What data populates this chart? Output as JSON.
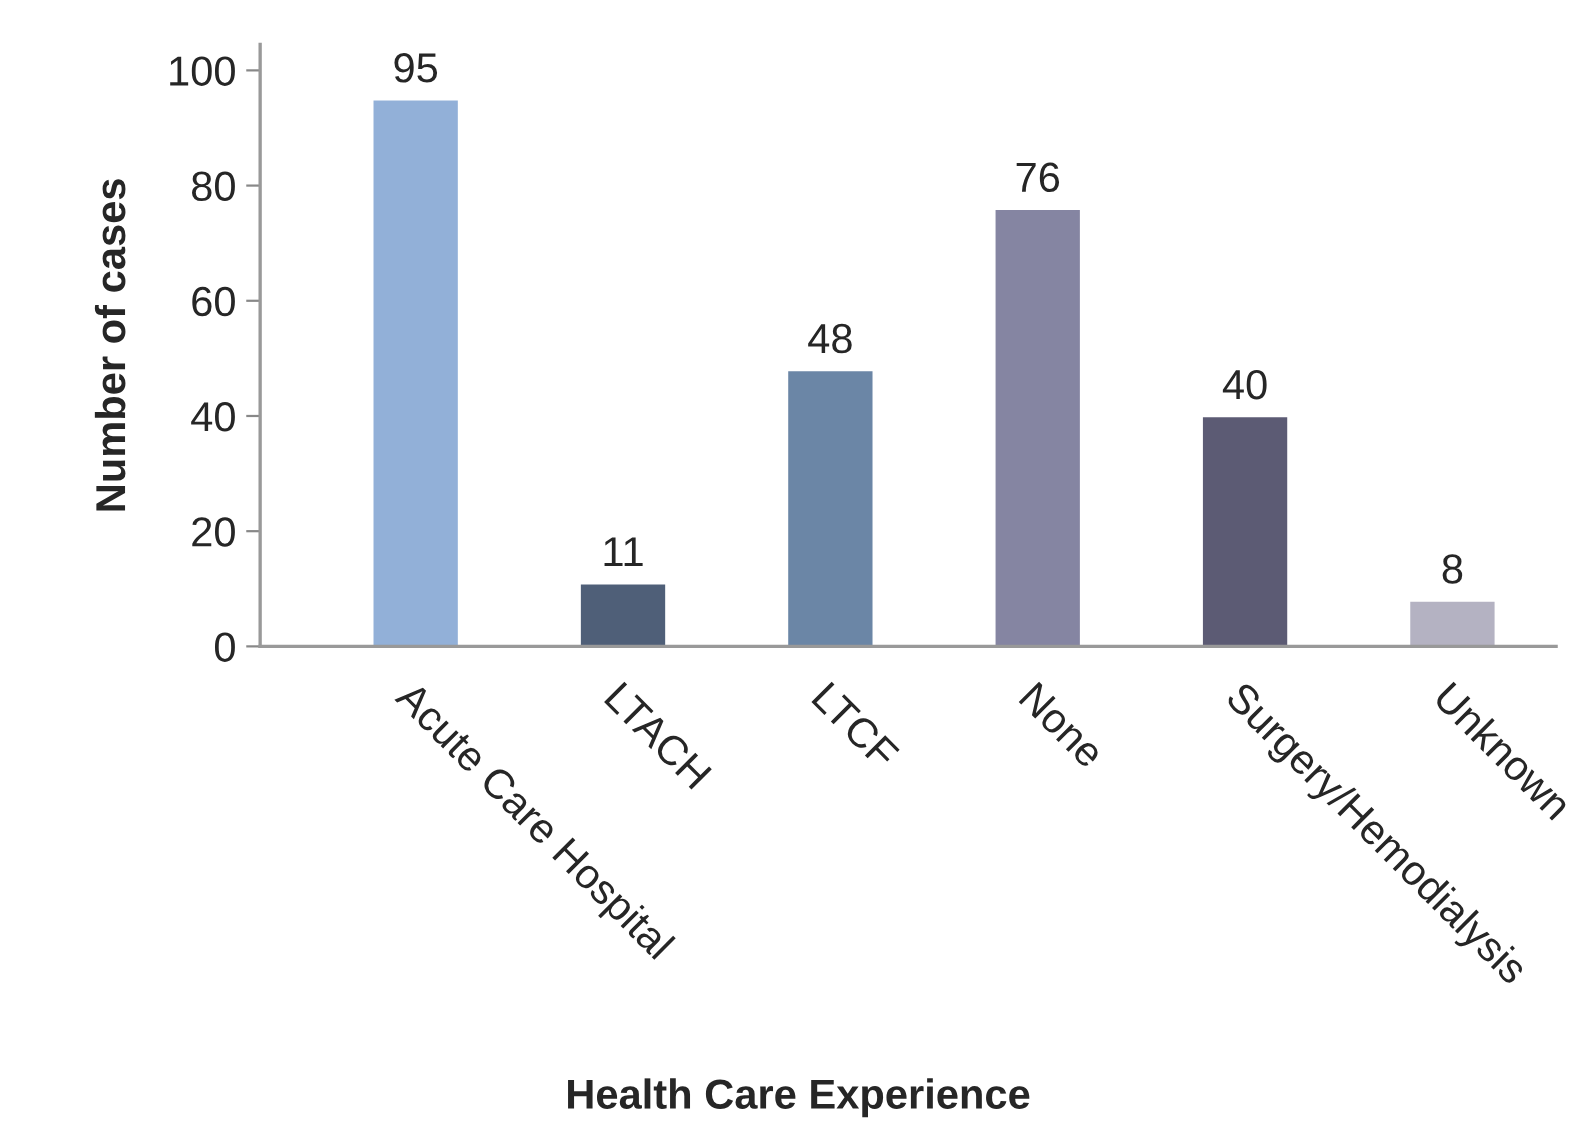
{
  "chart_data": {
    "type": "bar",
    "xlabel": "Health Care Experience",
    "ylabel": "Number of cases",
    "categories": [
      "Acute Care Hospital",
      "LTACH",
      "LTCF",
      "None",
      "Surgery/Hemodialysis",
      "Unknown"
    ],
    "values": [
      95,
      11,
      48,
      76,
      40,
      8
    ],
    "colors": [
      "#92b0d8",
      "#4f5f78",
      "#6b86a6",
      "#8585a2",
      "#5c5b74",
      "#b4b2c2"
    ],
    "ylim": [
      0,
      104.5
    ],
    "yticks": [
      0,
      20,
      40,
      60,
      80,
      100
    ],
    "data_labels": true,
    "grid": false,
    "legend": false
  }
}
